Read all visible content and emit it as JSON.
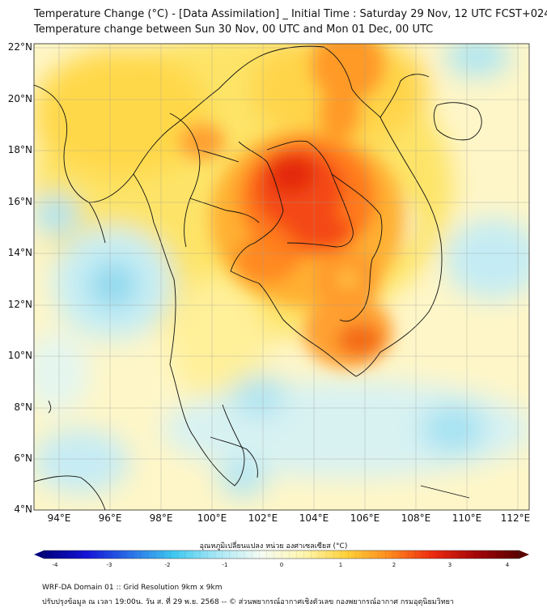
{
  "header": {
    "title_line1": "Temperature Change (°C) - [Data Assimilation] _ Initial Time : Saturday 29 Nov, 12 UTC FCST+024",
    "title_line2": "Temperature change between Sun 30 Nov, 00 UTC and Mon 01 Dec, 00 UTC"
  },
  "map": {
    "lat_labels": [
      "22°N",
      "20°N",
      "18°N",
      "16°N",
      "14°N",
      "12°N",
      "10°N",
      "8°N",
      "6°N",
      "4°N"
    ],
    "lon_labels": [
      "94°E",
      "96°E",
      "98°E",
      "100°E",
      "102°E",
      "104°E",
      "106°E",
      "108°E",
      "110°E",
      "112°E"
    ],
    "lat_range": [
      4,
      22.3
    ],
    "lon_range": [
      93,
      112.5
    ]
  },
  "colorbar": {
    "title": "อุณหภูมิเปลี่ยนแปลง หน่วย องศาเซลเซียส (°C)",
    "ticks": [
      "-4",
      "-3",
      "-2",
      "-1",
      "0",
      "1",
      "2",
      "3",
      "4"
    ],
    "min": -4,
    "max": 4,
    "colors": [
      "#00007f",
      "#1515d8",
      "#2a70e8",
      "#3ec8f0",
      "#a8e8f6",
      "#f4fbf4",
      "#fff6b0",
      "#ffd23a",
      "#ff8a1e",
      "#ee2a10",
      "#a4060a",
      "#5a0000"
    ]
  },
  "footer": {
    "line1": "WRF-DA Domain 01 :: Grid Resolution 9km x 9km",
    "line2": "ปรับปรุงข้อมูล ณ เวลา 19:00น. วัน ส. ที่ 29 พ.ย. 2568 -- © ส่วนพยากรณ์อากาศเชิงตัวเลข กองพยากรณ์อากาศ กรมอุตุนิยมวิทยา"
  }
}
